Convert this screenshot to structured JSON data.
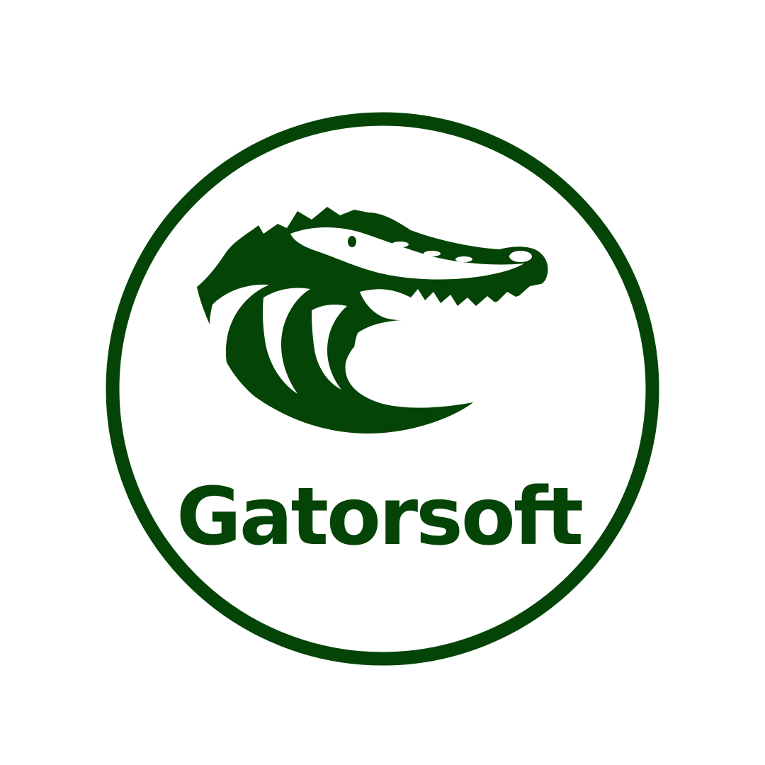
{
  "logo": {
    "brand_name": "Gatorsoft",
    "mascot_icon": "alligator-head-icon",
    "colors": {
      "primary_green": "#044406",
      "background": "#ffffff"
    }
  }
}
